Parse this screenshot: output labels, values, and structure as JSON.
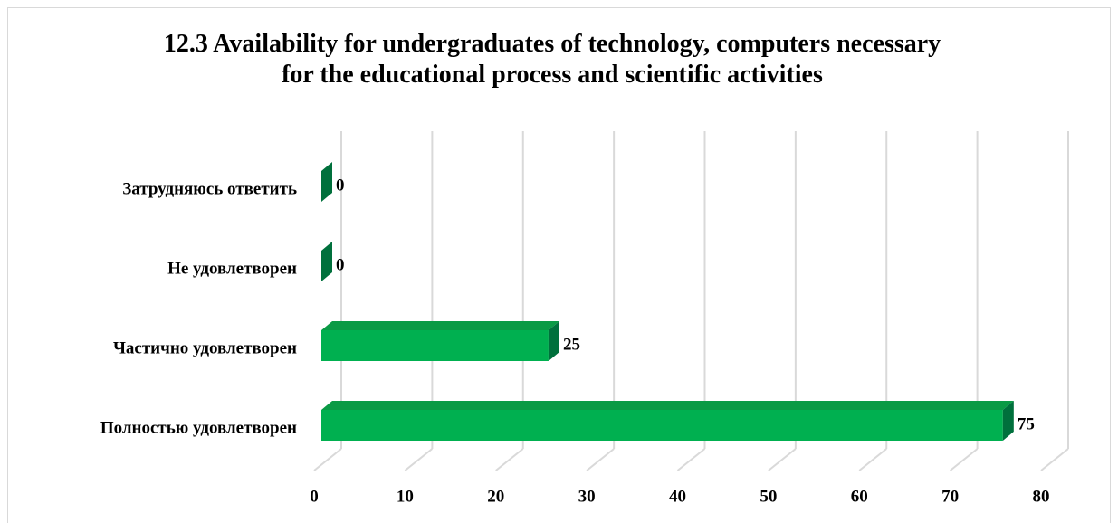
{
  "chart_data": {
    "type": "bar3d",
    "title": "12.3 Availability for undergraduates of technology, computers necessary for the educational process and scientific activities",
    "categories": [
      "Затрудняюсь ответить",
      "Не удовлетворен",
      "Частично удовлетворен",
      "Полностью удовлетворен"
    ],
    "values": [
      0,
      0,
      25,
      75
    ],
    "color": "#00b050",
    "xlim": [
      0,
      80
    ],
    "xticks": [
      0,
      10,
      20,
      30,
      40,
      50,
      60,
      70,
      80
    ],
    "grid": true
  }
}
